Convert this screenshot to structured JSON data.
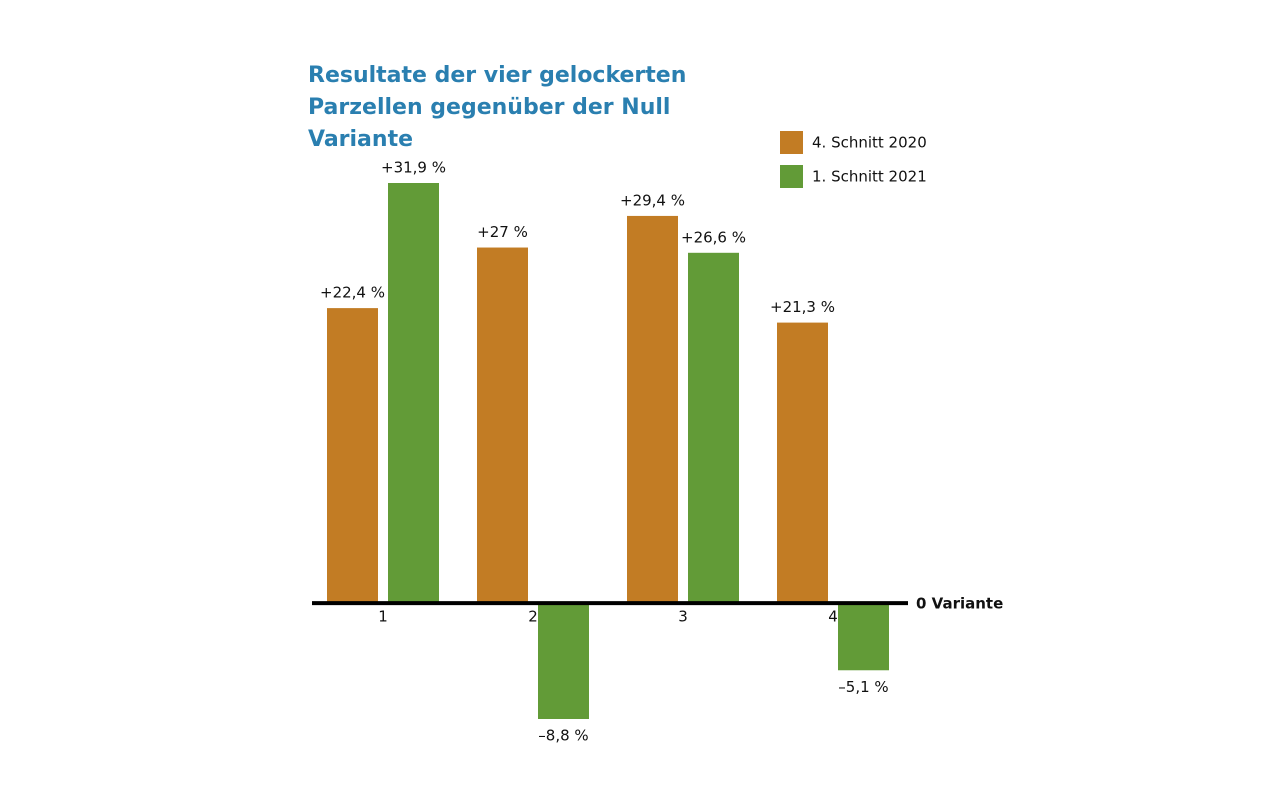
{
  "chart_data": {
    "type": "bar",
    "title": "Resultate der vier gelockerten Parzellen gegenüber der Null Variante",
    "baseline_label": "0 Variante",
    "categories": [
      "1",
      "2",
      "3",
      "4"
    ],
    "series": [
      {
        "name": "4. Schnitt 2020",
        "color": "#c27c24",
        "values": [
          22.4,
          27,
          29.4,
          21.3
        ],
        "value_labels": [
          "+22,4 %",
          "+27 %",
          "+29,4 %",
          "+21,3 %"
        ]
      },
      {
        "name": "1. Schnitt 2021",
        "color": "#629b37",
        "values": [
          31.9,
          -8.8,
          26.6,
          -5.1
        ],
        "value_labels": [
          "+31,9 %",
          "–8,8 %",
          "+26,6 %",
          "–5,1 %"
        ]
      }
    ],
    "legend": "top-right"
  }
}
